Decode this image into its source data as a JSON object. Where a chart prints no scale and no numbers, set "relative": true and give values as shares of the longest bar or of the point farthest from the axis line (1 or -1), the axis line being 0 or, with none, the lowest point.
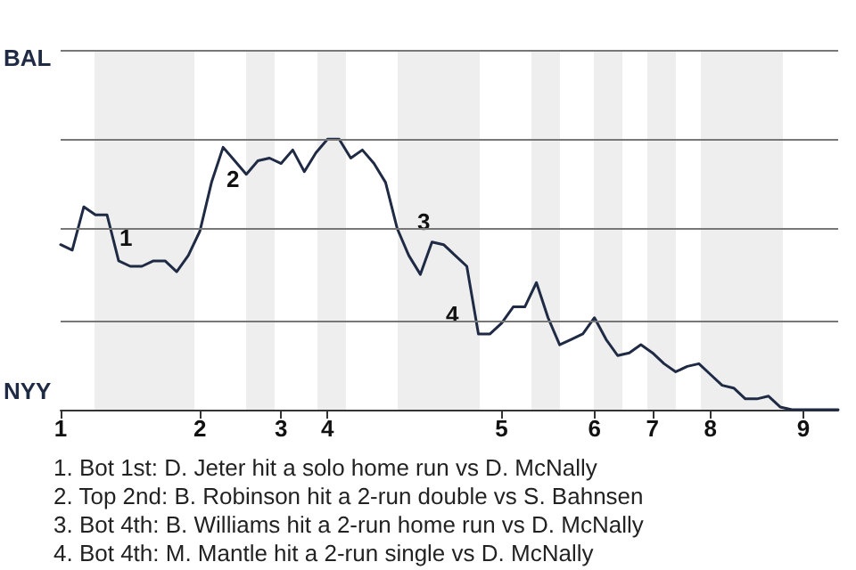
{
  "chart_data": {
    "type": "line",
    "color": "#1f2a44",
    "marker": "none",
    "line_style": "solid",
    "relative": true,
    "categories": [
      "1",
      null,
      null,
      null,
      null,
      null,
      null,
      null,
      null,
      null,
      null,
      null,
      "2",
      null,
      null,
      null,
      null,
      null,
      null,
      "3",
      null,
      null,
      null,
      "4",
      null,
      null,
      null,
      null,
      null,
      null,
      null,
      null,
      null,
      null,
      null,
      null,
      null,
      null,
      "5",
      null,
      null,
      null,
      null,
      null,
      null,
      null,
      "6",
      null,
      null,
      null,
      null,
      "7",
      null,
      null,
      null,
      null,
      "8",
      null,
      null,
      null,
      null,
      null,
      null,
      null,
      "9",
      null,
      null,
      null
    ],
    "values": [
      0.61,
      0.59,
      0.75,
      0.72,
      0.72,
      0.55,
      0.53,
      0.53,
      0.55,
      0.55,
      0.51,
      0.57,
      0.66,
      0.84,
      0.97,
      0.92,
      0.87,
      0.92,
      0.93,
      0.91,
      0.96,
      0.88,
      0.95,
      1,
      1,
      0.93,
      0.96,
      0.91,
      0.84,
      0.67,
      0.57,
      0.5,
      0.62,
      0.61,
      0.57,
      0.53,
      0.28,
      0.28,
      0.32,
      0.38,
      0.38,
      0.47,
      0.34,
      0.24,
      0.26,
      0.28,
      0.34,
      0.26,
      0.2,
      0.21,
      0.24,
      0.21,
      0.17,
      0.14,
      0.16,
      0.17,
      0.13,
      0.09,
      0.08,
      0.04,
      0.04,
      0.05,
      0.01,
      0,
      0,
      0,
      0,
      0
    ],
    "ref_lines": [
      {
        "axis": "y",
        "value": 0.33,
        "color": "#777777"
      },
      {
        "axis": "y",
        "value": 0.67,
        "color": "#777777"
      },
      {
        "axis": "y",
        "value": 1,
        "color": "#777777"
      },
      {
        "axis": "y",
        "value": 1.33,
        "color": "#777777"
      }
    ],
    "annotations": [
      "BAL",
      "NYY",
      "1",
      "2",
      "3",
      "4",
      "1. Bot 1st: D. Jeter hit a solo home run vs D. McNally",
      "2. Top 2nd: B. Robinson hit a 2-run double vs S. Bahnsen",
      "3. Bot 4th: B. Williams hit a 2-run home run vs D. McNally",
      "4. Bot 4th: M. Mantle hit a 2-run single vs D. McNally"
    ]
  }
}
